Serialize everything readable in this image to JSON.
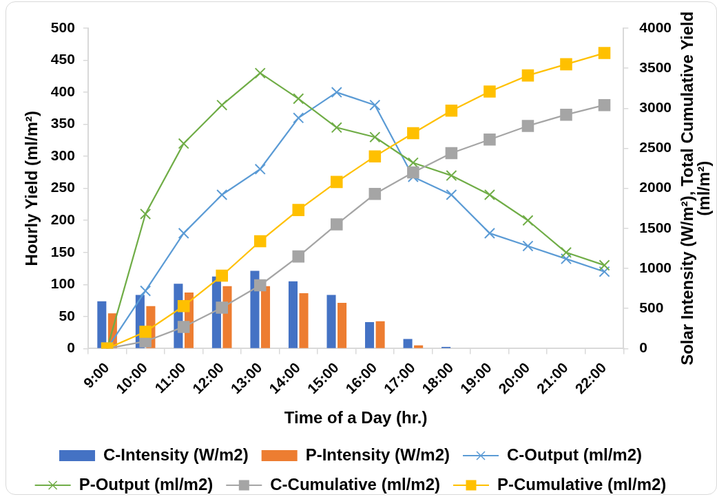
{
  "chart_data": {
    "type": "bar",
    "xlabel": "Time of a Day (hr.)",
    "ylabel": "Hourly Yield (ml/m²)",
    "y2label": "Solar Intensity (W/m²), Total Cumulative Yield (ml/m²)",
    "categories": [
      "9:00",
      "10:00",
      "11:00",
      "12:00",
      "13:00",
      "14:00",
      "15:00",
      "16:00",
      "17:00",
      "18:00",
      "19:00",
      "20:00",
      "21:00",
      "22:00"
    ],
    "series": [
      {
        "name": "C-Intensity (W/m2)",
        "axis": "y2",
        "color": "#4472c4",
        "values": [
          590,
          670,
          810,
          900,
          970,
          840,
          670,
          330,
          120,
          20,
          0,
          0,
          0,
          0
        ]
      },
      {
        "name": "P-Intensity (W/m2)",
        "axis": "y2",
        "color": "#ed7d31",
        "values": [
          440,
          530,
          700,
          780,
          780,
          690,
          570,
          340,
          40,
          0,
          0,
          0,
          0,
          0
        ]
      },
      {
        "name": "C-Output (ml/m2)",
        "type": "line",
        "color": "#5b9bd5",
        "marker": "cross",
        "values": [
          0,
          90,
          180,
          240,
          280,
          360,
          400,
          380,
          268,
          240,
          180,
          160,
          140,
          120
        ]
      },
      {
        "name": "P-Output (ml/m2)",
        "type": "line",
        "color": "#70ad47",
        "marker": "cross",
        "values": [
          0,
          210,
          320,
          380,
          430,
          390,
          345,
          330,
          290,
          270,
          240,
          200,
          150,
          130
        ]
      },
      {
        "name": "C-Cumulative (ml/m2)",
        "type": "line",
        "axis": "y2",
        "color": "#a5a5a5",
        "marker": "square",
        "values": [
          0,
          90,
          270,
          510,
          790,
          1150,
          1550,
          1930,
          2200,
          2440,
          2610,
          2780,
          2920,
          3040
        ]
      },
      {
        "name": "P-Cumulative (ml/m2)",
        "type": "line",
        "axis": "y2",
        "color": "#ffc000",
        "marker": "square",
        "values": [
          0,
          210,
          530,
          910,
          1340,
          1730,
          2080,
          2400,
          2690,
          2970,
          3210,
          3410,
          3550,
          3690
        ]
      }
    ],
    "ylim": [
      0,
      500
    ],
    "yticks": [
      0,
      50,
      100,
      150,
      200,
      250,
      300,
      350,
      400,
      450,
      500
    ],
    "y2lim": [
      0,
      4000
    ],
    "y2ticks": [
      0,
      500,
      1000,
      1500,
      2000,
      2500,
      3000,
      3500,
      4000
    ],
    "legend": "bottom",
    "line_style": "solid"
  }
}
